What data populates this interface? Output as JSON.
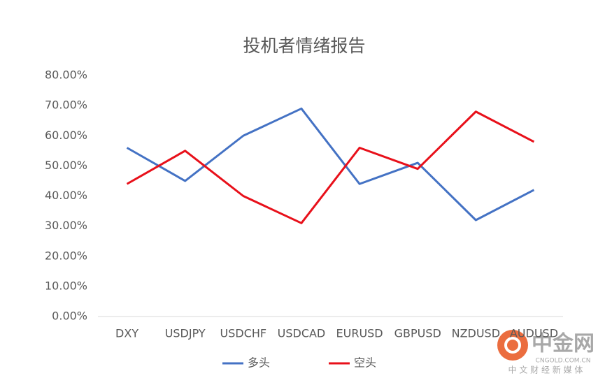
{
  "chart_data": {
    "type": "line",
    "title": "投机者情绪报告",
    "categories": [
      "DXY",
      "USDJPY",
      "USDCHF",
      "USDCAD",
      "EURUSD",
      "GBPUSD",
      "NZDUSD",
      "AUDUSD"
    ],
    "series": [
      {
        "name": "多头",
        "color": "#4472c4",
        "values": [
          56,
          45,
          60,
          69,
          44,
          51,
          32,
          42
        ]
      },
      {
        "name": "空头",
        "color": "#e8101a",
        "values": [
          44,
          55,
          40,
          31,
          56,
          49,
          68,
          58
        ]
      }
    ],
    "ylim": [
      0,
      80
    ],
    "yticks": [
      {
        "value": 0,
        "label": "0.00%"
      },
      {
        "value": 10,
        "label": "10.00%"
      },
      {
        "value": 20,
        "label": "20.00%"
      },
      {
        "value": 30,
        "label": "30.00%"
      },
      {
        "value": 40,
        "label": "40.00%"
      },
      {
        "value": 50,
        "label": "50.00%"
      },
      {
        "value": 60,
        "label": "60.00%"
      },
      {
        "value": 70,
        "label": "70.00%"
      },
      {
        "value": 80,
        "label": "80.00%"
      }
    ],
    "grid": false,
    "legend": "bottom"
  },
  "watermark": {
    "brand": "中金网",
    "site": "CNGOLD.COM.CN",
    "slogan": "中 文 财 经 新 媒 体"
  }
}
